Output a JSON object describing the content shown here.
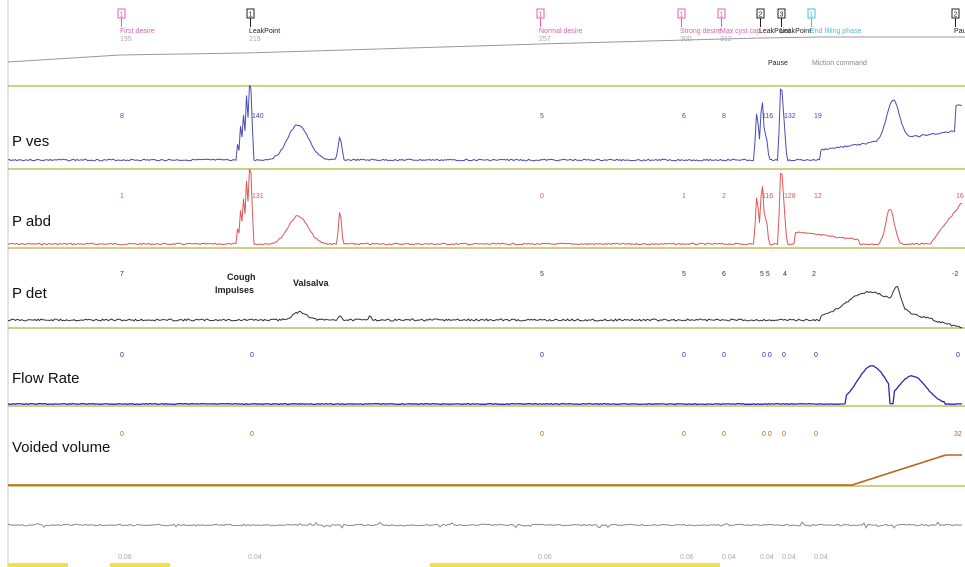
{
  "chart_data": {
    "type": "line",
    "channels": [
      {
        "name": "P ves",
        "color": "#4a4ab8",
        "markers": [
          "8",
          "140",
          "5",
          "6",
          "8",
          "116",
          "132",
          "19"
        ]
      },
      {
        "name": "P abd",
        "color": "#e05555",
        "markers": [
          "1",
          "131",
          "0",
          "1",
          "2",
          "116",
          "128",
          "12",
          "16"
        ]
      },
      {
        "name": "P det",
        "color": "#333333",
        "markers": [
          "7",
          "5",
          "5",
          "6",
          "5 5",
          "4",
          "2",
          "-2"
        ]
      },
      {
        "name": "Flow Rate",
        "color": "#2a2aa8",
        "markers": [
          "0",
          "0",
          "0",
          "0",
          "0",
          "0 0",
          "0",
          "0",
          "0"
        ]
      },
      {
        "name": "Voided volume",
        "color": "#b5651d",
        "markers": [
          "0",
          "0",
          "0",
          "0",
          "0",
          "0 0",
          "0",
          "0",
          "32"
        ]
      }
    ],
    "events": [
      {
        "num": "1",
        "label": "First desire",
        "value": "195",
        "color": "#e060b0"
      },
      {
        "num": "1",
        "label": "LeakPoint",
        "value": "215",
        "color": "#222222"
      },
      {
        "num": "1",
        "label": "Normal desire",
        "value": "257",
        "color": "#e060b0"
      },
      {
        "num": "1",
        "label": "Strong desire",
        "value": "300",
        "color": "#e060b0"
      },
      {
        "num": "1",
        "label": "Max cyst cap",
        "value": "312",
        "color": "#e060b0"
      },
      {
        "num": "2",
        "label": "LeakPoint",
        "value": "",
        "color": "#222222"
      },
      {
        "num": "3",
        "label": "LeakPoint",
        "value": "",
        "color": "#222222"
      },
      {
        "num": "1",
        "label": "End filling phase",
        "value": "",
        "color": "#4ac0d0"
      },
      {
        "num": "2",
        "label": "Pause",
        "value": "",
        "color": "#222222"
      }
    ],
    "extra_labels": [
      "Pause",
      "Miction command"
    ],
    "annotations": [
      "Cough Impulses",
      "Valsalva"
    ],
    "bottom_values": [
      "0.06",
      "0.04",
      "0.06",
      "0.06",
      "0.04",
      "0.04",
      "0.04",
      "0.04"
    ]
  }
}
